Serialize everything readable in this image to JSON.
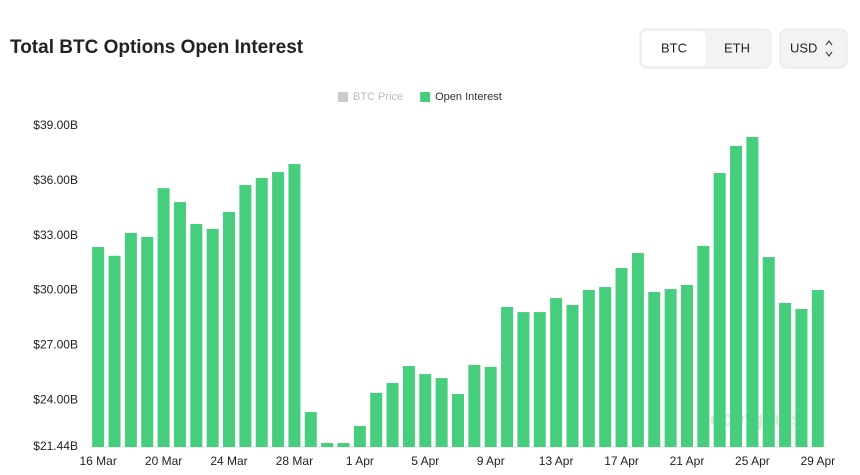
{
  "controls": {
    "asset_tabs": [
      "BTC",
      "ETH"
    ],
    "selected": "BTC",
    "currency": "USD"
  },
  "chart_data": {
    "type": "bar",
    "title": "Total BTC Options Open Interest",
    "watermark": "coinglass",
    "inactive_series": [
      {
        "name": "BTC Price",
        "color": "#cccccc"
      }
    ],
    "categories": [
      "16 Mar",
      null,
      null,
      null,
      "20 Mar",
      null,
      null,
      null,
      "24 Mar",
      null,
      null,
      null,
      "28 Mar",
      null,
      null,
      null,
      "1 Apr",
      null,
      null,
      null,
      "5 Apr",
      null,
      null,
      null,
      "9 Apr",
      null,
      null,
      null,
      "13 Apr",
      null,
      null,
      null,
      "17 Apr",
      null,
      null,
      null,
      "21 Apr",
      null,
      null,
      null,
      "25 Apr",
      null,
      null,
      null,
      "29 Apr"
    ],
    "series": [
      {
        "name": "Open Interest",
        "color": "#47cd7e",
        "values": [
          32.38,
          31.9,
          33.15,
          32.93,
          35.6,
          34.84,
          33.64,
          33.37,
          34.3,
          35.77,
          36.16,
          36.48,
          36.92,
          23.35,
          21.66,
          21.66,
          22.59,
          24.4,
          24.94,
          25.87,
          25.43,
          25.21,
          24.34,
          25.93,
          25.82,
          29.1,
          28.82,
          28.82,
          29.59,
          29.21,
          30.03,
          30.19,
          31.23,
          32.05,
          29.92,
          30.08,
          30.3,
          32.44,
          36.43,
          37.91,
          38.4,
          31.83,
          29.32,
          28.99,
          30.03
        ]
      }
    ],
    "ylim": [
      21.44,
      39.0
    ],
    "yticks": [
      {
        "value": 21.44,
        "label": "$21.44B"
      },
      {
        "value": 24,
        "label": "$24.00B"
      },
      {
        "value": 27,
        "label": "$27.00B"
      },
      {
        "value": 30,
        "label": "$30.00B"
      },
      {
        "value": 33,
        "label": "$33.00B"
      },
      {
        "value": 36,
        "label": "$36.00B"
      },
      {
        "value": 39,
        "label": "$39.00B"
      }
    ],
    "grid": false
  }
}
